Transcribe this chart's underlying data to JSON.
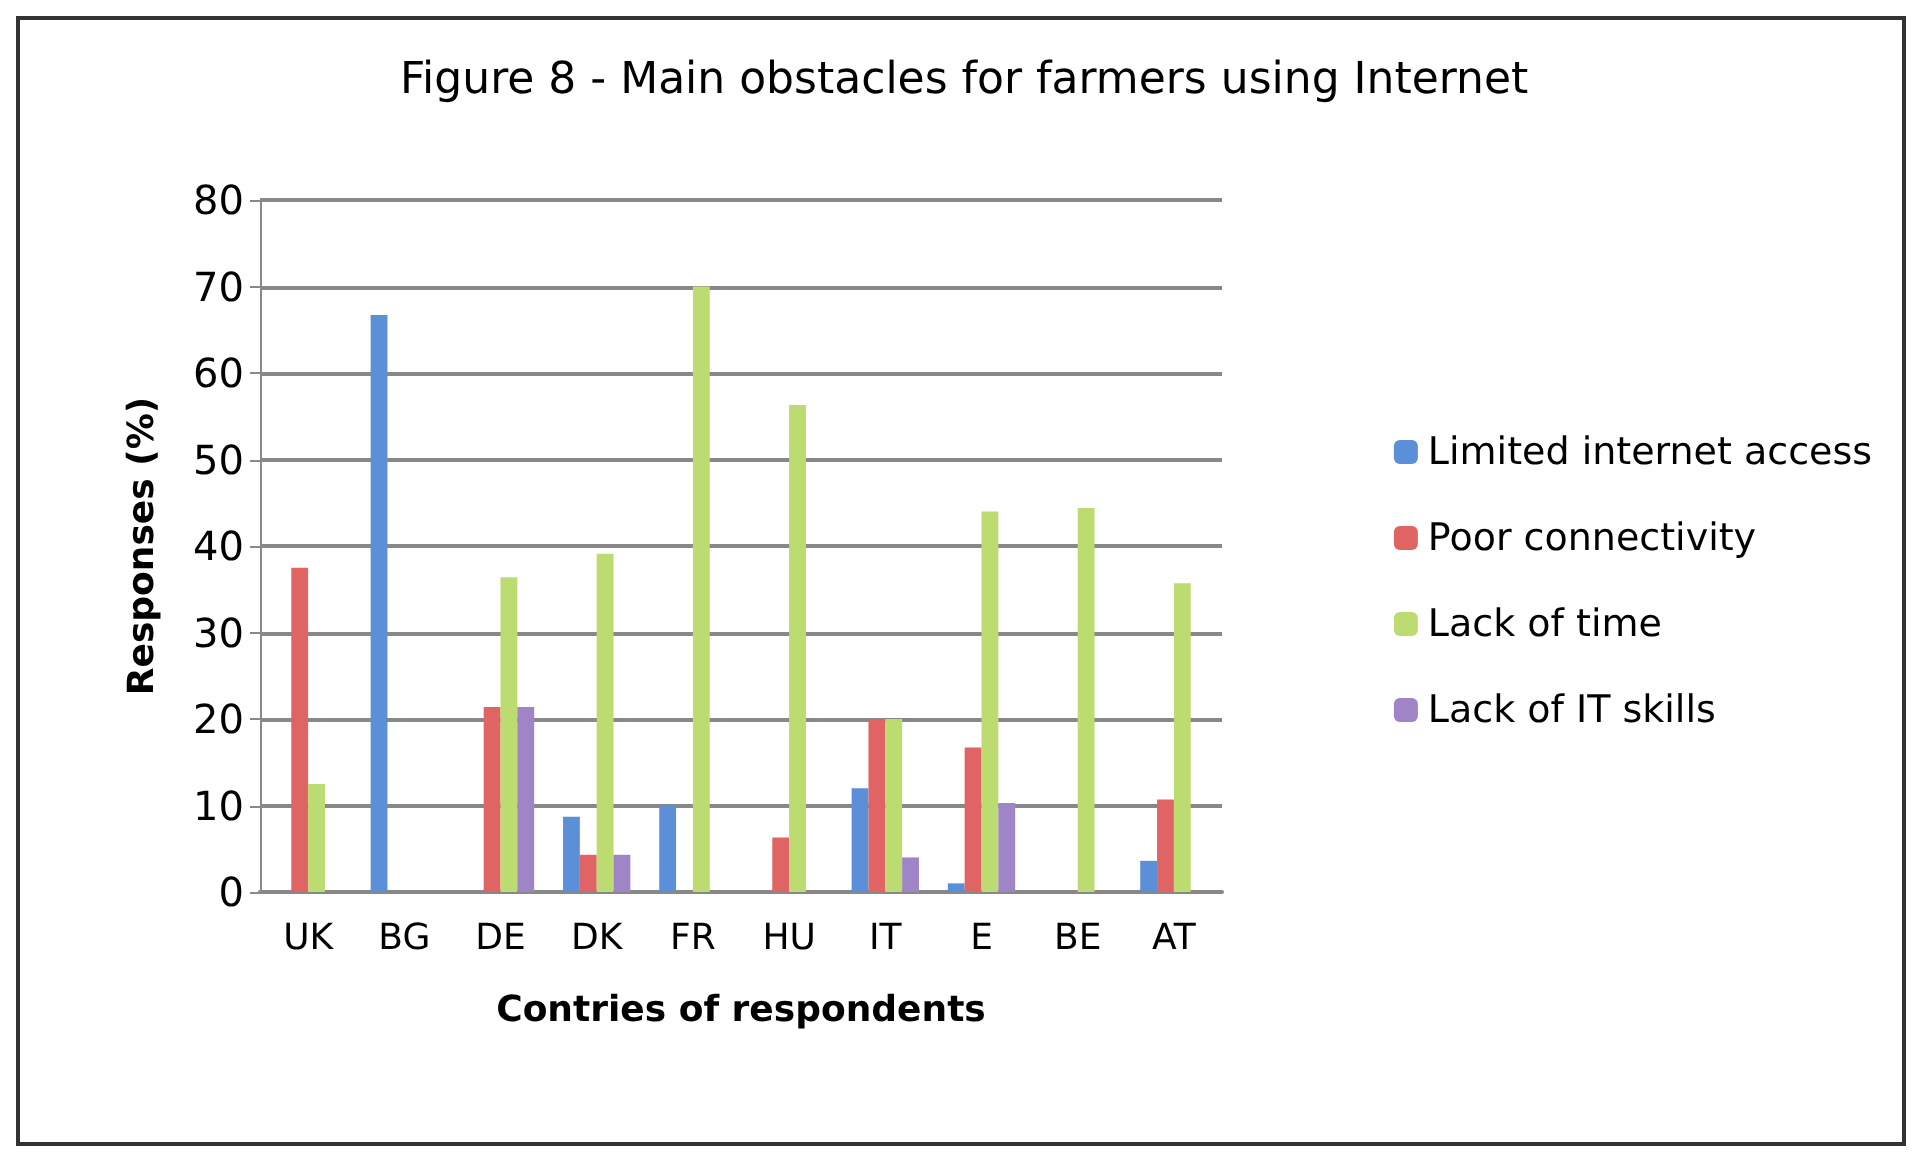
{
  "chart_data": {
    "type": "bar",
    "title": "Figure 8 - Main obstacles for farmers using Internet",
    "xlabel": "Contries of respondents",
    "ylabel": "Responses (%)",
    "categories": [
      "UK",
      "BG",
      "DE",
      "DK",
      "FR",
      "HU",
      "IT",
      "E",
      "BE",
      "AT"
    ],
    "series": [
      {
        "name": "Limited internet access",
        "color": "#5b8fd8",
        "values": [
          0,
          66.7,
          0,
          8.7,
          10,
          0,
          12,
          1,
          0,
          3.6
        ]
      },
      {
        "name": "Poor connectivity",
        "color": "#e06464",
        "values": [
          37.5,
          0,
          21.4,
          4.3,
          0,
          6.3,
          20,
          16.7,
          0,
          10.7
        ]
      },
      {
        "name": "Lack of time",
        "color": "#bcdc72",
        "values": [
          12.5,
          0,
          36.4,
          39.1,
          70,
          56.3,
          20,
          44,
          44.4,
          35.7
        ]
      },
      {
        "name": "Lack of IT skills",
        "color": "#9f84c8",
        "values": [
          0,
          0,
          21.4,
          4.3,
          0,
          0,
          4,
          10.3,
          0,
          0
        ]
      }
    ],
    "ylim": [
      0,
      80
    ],
    "yticks": [
      0,
      10,
      20,
      30,
      40,
      50,
      60,
      70,
      80
    ],
    "grid": "y",
    "legend": "right"
  }
}
